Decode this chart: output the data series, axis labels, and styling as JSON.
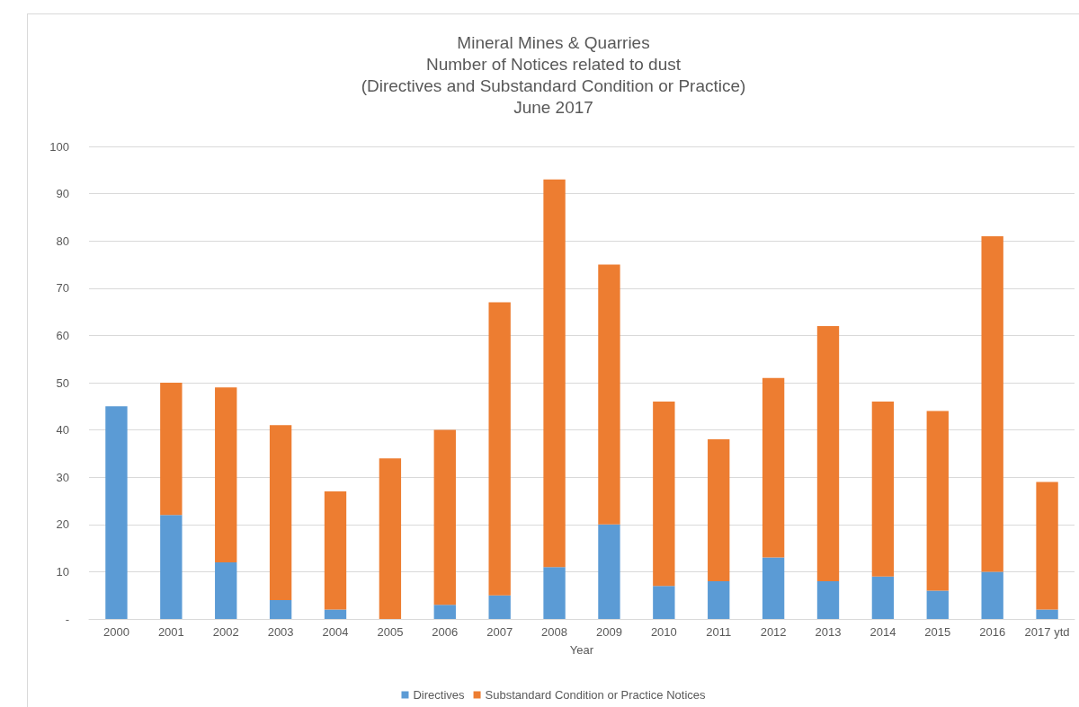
{
  "chart_data": {
    "type": "bar",
    "title": "Mineral Mines & Quarries\nNumber of Notices related to dust\n(Directives and Substandard Condition or Practice)\nJune 2017",
    "xlabel": "Year",
    "categories": [
      "2000",
      "2001",
      "2002",
      "2003",
      "2004",
      "2005",
      "2006",
      "2007",
      "2008",
      "2009",
      "2010",
      "2011",
      "2012",
      "2013",
      "2014",
      "2015",
      "2016",
      "2017 ytd"
    ],
    "series": [
      {
        "name": "Directives",
        "color": "#5b9bd5",
        "values": [
          45,
          22,
          12,
          4,
          2,
          0,
          3,
          5,
          11,
          20,
          7,
          8,
          13,
          8,
          9,
          6,
          10,
          2
        ]
      },
      {
        "name": "Substandard Condition or Practice Notices",
        "color": "#ed7d31",
        "values": [
          0,
          28,
          37,
          37,
          25,
          34,
          37,
          62,
          82,
          55,
          39,
          30,
          38,
          54,
          37,
          38,
          71,
          27
        ]
      }
    ],
    "stacked": true,
    "ylim": [
      0,
      100
    ],
    "yticks": [
      {
        "value": 0,
        "label": "-"
      },
      10,
      20,
      30,
      40,
      50,
      60,
      70,
      80,
      90,
      100
    ],
    "grid": "y",
    "legend": "bottom"
  }
}
